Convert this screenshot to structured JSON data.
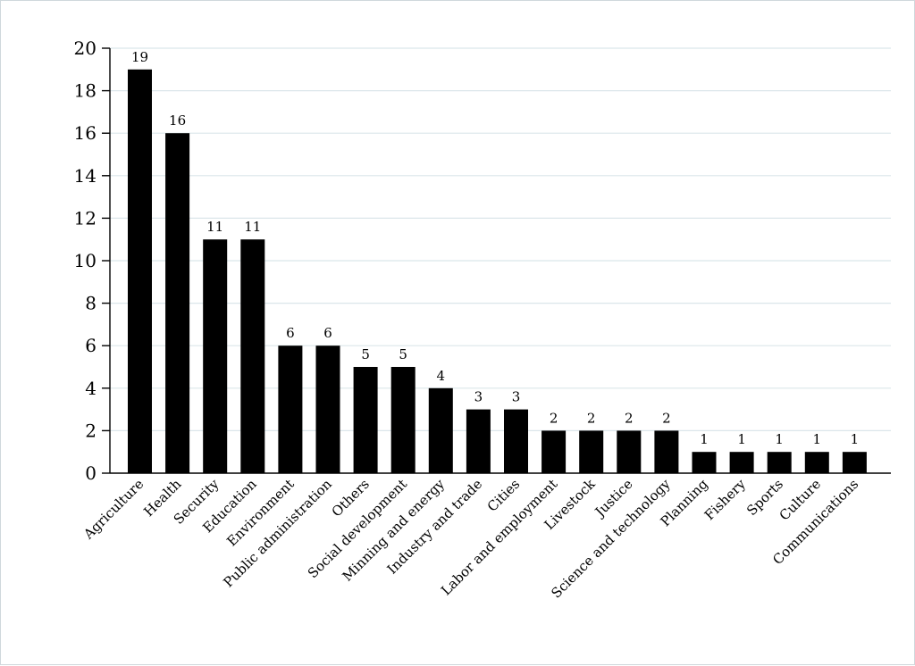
{
  "chart_data": {
    "type": "bar",
    "title": "",
    "xlabel": "",
    "ylabel": "",
    "ylim": [
      0,
      20
    ],
    "yticks": [
      0,
      2,
      4,
      6,
      8,
      10,
      12,
      14,
      16,
      18,
      20
    ],
    "grid": true,
    "categories": [
      "Agriculture",
      "Health",
      "Security",
      "Education",
      "Environment",
      "Public administration",
      "Others",
      "Social development",
      "Minning and energy",
      "Industry and trade",
      "Cities",
      "Labor and employment",
      "Livestock",
      "Justice",
      "Science and technology",
      "Planning",
      "Fishery",
      "Sports",
      "Culture",
      "Communications"
    ],
    "values": [
      19,
      16,
      11,
      11,
      6,
      6,
      5,
      5,
      4,
      3,
      3,
      2,
      2,
      2,
      2,
      1,
      1,
      1,
      1,
      1
    ],
    "bar_color": "#000000",
    "grid_color": "#dbe6ea"
  }
}
